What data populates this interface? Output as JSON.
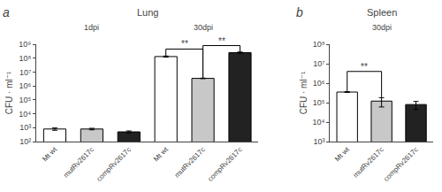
{
  "chart_data": [
    {
      "type": "bar",
      "title": "Lung",
      "ylabel": "CFU · ml⁻¹",
      "categories": [
        "Mt wt",
        "mutRv2617c",
        "compRv2617c",
        "Mt wt",
        "mutRv2617c",
        "compRv2617c"
      ],
      "values": [
        800,
        800,
        500,
        130000000,
        3500000,
        250000000
      ],
      "errors": [
        150,
        100,
        80,
        12000000,
        150000,
        25000000
      ],
      "colors": [
        "white",
        "#c8c8c8",
        "#222222",
        "white",
        "#c8c8c8",
        "#222222"
      ],
      "log": "y",
      "grid": false,
      "ylim": [
        100,
        1000000000
      ],
      "yticks": [
        {
          "value": 100,
          "label": "10²"
        },
        {
          "value": 1000,
          "label": "10³"
        },
        {
          "value": 10000,
          "label": "10⁴"
        },
        {
          "value": 100000,
          "label": "10⁵"
        },
        {
          "value": 1000000,
          "label": "10⁶"
        },
        {
          "value": 10000000,
          "label": "10⁷"
        },
        {
          "value": 100000000,
          "label": "10⁸"
        },
        {
          "value": 1000000000,
          "label": "10⁹"
        }
      ],
      "annotations": [
        {
          "text": "a"
        },
        {
          "text": "1dpi",
          "x": 1
        },
        {
          "text": "30dpi",
          "x": 4
        },
        {
          "text": "**",
          "x": [
            3,
            4
          ],
          "y": 450000000
        },
        {
          "text": "**",
          "x": [
            4,
            5
          ],
          "y": 800000000
        }
      ]
    },
    {
      "type": "bar",
      "title": "Spleen",
      "ylabel": "CFU · ml⁻¹",
      "categories": [
        "Mt wt",
        "mutRv2617c",
        "compRv2617c"
      ],
      "values": [
        350000,
        120000,
        80000
      ],
      "errors": [
        15000,
        60000,
        35000
      ],
      "colors": [
        "white",
        "#c8c8c8",
        "#222222"
      ],
      "log": "y",
      "grid": false,
      "ylim": [
        1000,
        100000000
      ],
      "yticks": [
        {
          "value": 1000,
          "label": "10³"
        },
        {
          "value": 10000,
          "label": "10⁴"
        },
        {
          "value": 100000,
          "label": "10⁵"
        },
        {
          "value": 1000000,
          "label": "10⁶"
        },
        {
          "value": 10000000,
          "label": "10⁷"
        },
        {
          "value": 100000000,
          "label": "10⁸"
        }
      ],
      "annotations": [
        {
          "text": "b"
        },
        {
          "text": "30dpi",
          "x": 1
        },
        {
          "text": "**",
          "x": [
            0,
            1
          ],
          "y": 4000000
        }
      ]
    }
  ]
}
